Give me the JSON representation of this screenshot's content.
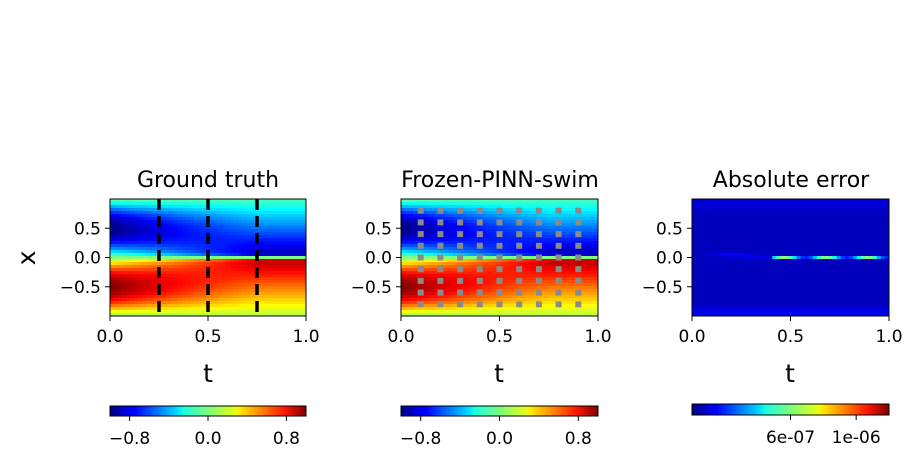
{
  "chart_data": [
    {
      "type": "heatmap",
      "title": "Ground truth",
      "xlabel": "t",
      "ylabel": "x",
      "xlim": [
        0.0,
        1.0
      ],
      "ylim": [
        -1.0,
        1.0
      ],
      "xticks": [
        "0.0",
        "0.5",
        "1.0"
      ],
      "yticks": [
        "0.5",
        "0.0",
        "−0.5"
      ],
      "field": "u(x,t) = -sin(pi x) with a shock forming at x = 0 (viscous Burgers' solution)",
      "vlines_t": [
        0.25,
        0.5,
        0.75
      ],
      "colorbar": {
        "cmap": "jet",
        "range": [
          -1.0,
          1.0
        ],
        "ticks": [
          "−0.8",
          "0.0",
          "0.8"
        ]
      }
    },
    {
      "type": "heatmap",
      "title": "Frozen-PINN-swim",
      "xlabel": "t",
      "ylabel": "",
      "xlim": [
        0.0,
        1.0
      ],
      "ylim": [
        -1.0,
        1.0
      ],
      "xticks": [
        "0.0",
        "0.5",
        "1.0"
      ],
      "yticks": [
        "0.5",
        "0.0",
        "−0.5"
      ],
      "field": "same as ground truth",
      "collocation_grid": {
        "t": [
          0.1,
          0.2,
          0.3,
          0.4,
          0.5,
          0.6,
          0.7,
          0.8,
          0.9
        ],
        "x": [
          0.8,
          0.6,
          0.4,
          0.2,
          0.0,
          -0.2,
          -0.4,
          -0.6,
          -0.8
        ]
      },
      "colorbar": {
        "cmap": "jet",
        "range": [
          -1.0,
          1.0
        ],
        "ticks": [
          "−0.8",
          "0.0",
          "0.8"
        ]
      }
    },
    {
      "type": "heatmap",
      "title": "Absolute error",
      "xlabel": "t",
      "ylabel": "",
      "xlim": [
        0.0,
        1.0
      ],
      "ylim": [
        -1.0,
        1.0
      ],
      "xticks": [
        "0.0",
        "0.5",
        "1.0"
      ],
      "yticks": [
        "0.5",
        "0.0",
        "−0.5"
      ],
      "field": "near zero everywhere, error concentrated along x = 0 for t > 0.4",
      "colorbar": {
        "cmap": "jet",
        "range": [
          0.0,
          1.2e-06
        ],
        "ticks": [
          "6e-07",
          "1e-06"
        ],
        "tick_values": [
          6e-07,
          1e-06
        ]
      }
    }
  ]
}
